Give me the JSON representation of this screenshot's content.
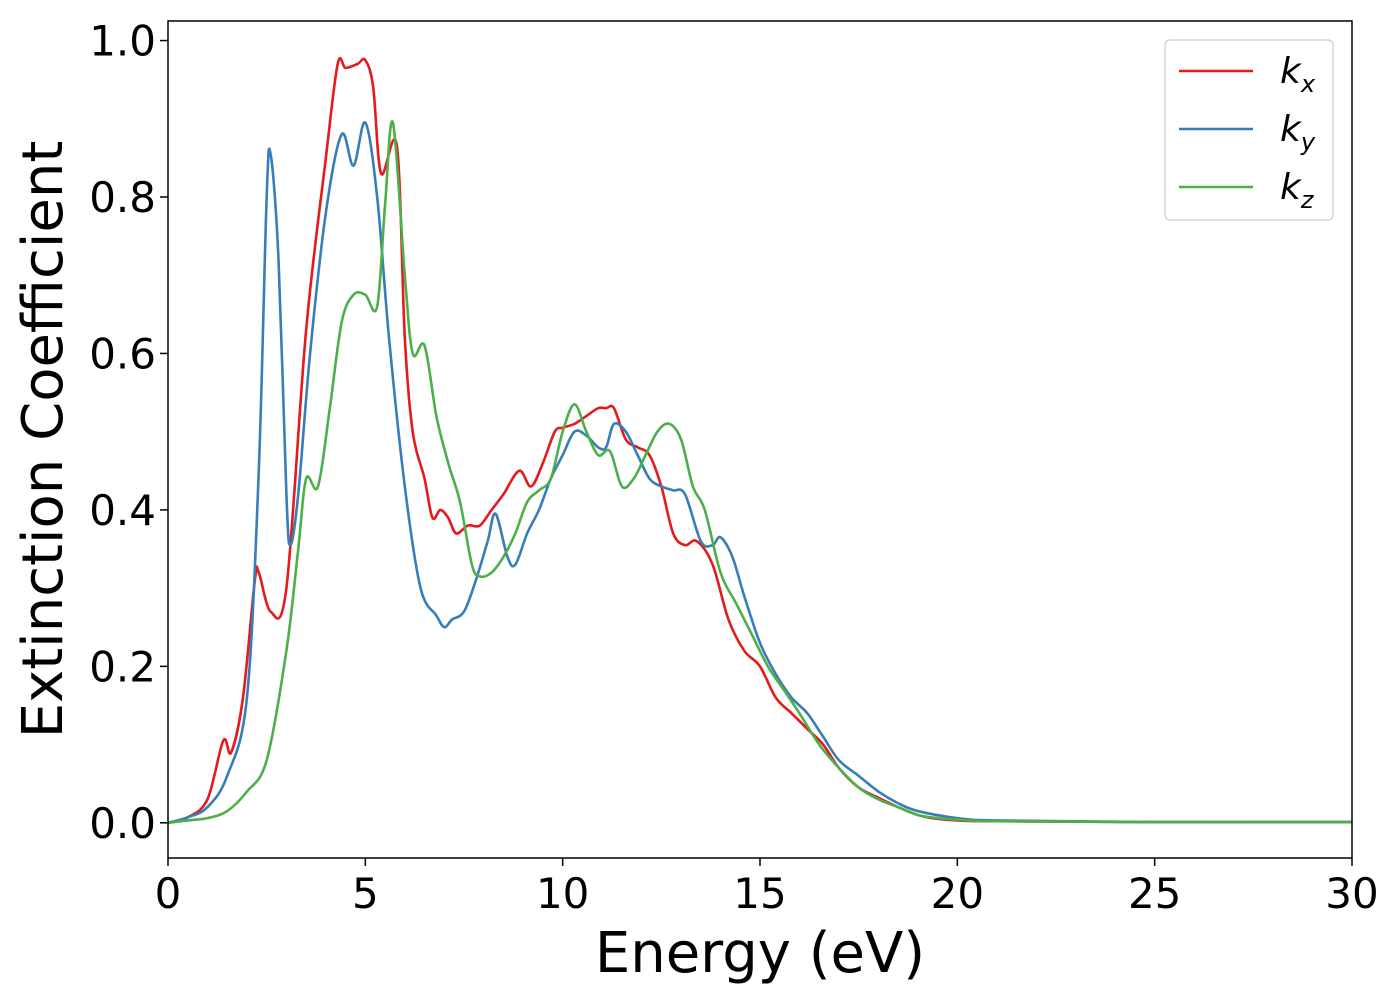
{
  "chart_data": {
    "type": "line",
    "title": "",
    "xlabel": "Energy (eV)",
    "ylabel": "Extinction Coefficient",
    "xlim": [
      0,
      30
    ],
    "ylim": [
      -0.045,
      1.025
    ],
    "xticks": [
      0,
      5,
      10,
      15,
      20,
      25,
      30
    ],
    "xtick_labels": [
      "0",
      "5",
      "10",
      "15",
      "20",
      "25",
      "30"
    ],
    "yticks": [
      0.0,
      0.2,
      0.4,
      0.6,
      0.8,
      1.0
    ],
    "ytick_labels": [
      "0.0",
      "0.2",
      "0.4",
      "0.6",
      "0.8",
      "1.0"
    ],
    "grid": false,
    "legend_position": "top-right",
    "series": [
      {
        "name": "k_x",
        "label_base": "k",
        "label_sub": "x",
        "color": "#e41a1c",
        "x": [
          0,
          0.5,
          1.0,
          1.4,
          1.6,
          1.9,
          2.2,
          2.3,
          2.6,
          3.0,
          3.5,
          4.0,
          4.3,
          4.5,
          4.8,
          5.0,
          5.2,
          5.4,
          5.8,
          6.0,
          6.2,
          6.5,
          6.7,
          6.9,
          7.1,
          7.3,
          7.6,
          7.9,
          8.2,
          8.5,
          8.9,
          9.2,
          9.5,
          9.8,
          10.0,
          10.3,
          10.6,
          10.9,
          11.1,
          11.3,
          11.6,
          11.9,
          12.2,
          12.5,
          12.8,
          13.1,
          13.4,
          13.8,
          14.2,
          14.6,
          15.0,
          15.4,
          15.8,
          16.2,
          16.6,
          17.0,
          17.5,
          18.0,
          18.5,
          19.0,
          19.5,
          20.0,
          21.0,
          25.0,
          30.0
        ],
        "y": [
          0.0,
          0.007,
          0.03,
          0.105,
          0.09,
          0.16,
          0.31,
          0.32,
          0.27,
          0.3,
          0.63,
          0.85,
          0.97,
          0.965,
          0.97,
          0.975,
          0.94,
          0.83,
          0.865,
          0.62,
          0.5,
          0.44,
          0.39,
          0.4,
          0.39,
          0.37,
          0.38,
          0.38,
          0.4,
          0.42,
          0.45,
          0.43,
          0.46,
          0.5,
          0.505,
          0.51,
          0.52,
          0.53,
          0.53,
          0.53,
          0.49,
          0.48,
          0.47,
          0.43,
          0.37,
          0.355,
          0.36,
          0.33,
          0.26,
          0.22,
          0.2,
          0.16,
          0.14,
          0.12,
          0.1,
          0.07,
          0.045,
          0.032,
          0.02,
          0.01,
          0.005,
          0.003,
          0.002,
          0.001,
          0.001
        ]
      },
      {
        "name": "k_y",
        "label_base": "k",
        "label_sub": "y",
        "color": "#377eb8",
        "x": [
          0,
          0.5,
          1.0,
          1.5,
          2.0,
          2.3,
          2.5,
          2.6,
          2.8,
          3.0,
          3.1,
          3.3,
          3.6,
          4.0,
          4.4,
          4.7,
          5.0,
          5.3,
          5.6,
          6.0,
          6.4,
          6.8,
          7.0,
          7.2,
          7.5,
          7.8,
          8.1,
          8.3,
          8.6,
          8.8,
          9.1,
          9.4,
          9.7,
          10.0,
          10.3,
          10.6,
          10.9,
          11.1,
          11.3,
          11.6,
          11.9,
          12.2,
          12.5,
          12.8,
          13.1,
          13.5,
          13.8,
          14.0,
          14.3,
          14.6,
          15.0,
          15.4,
          15.8,
          16.2,
          16.6,
          17.0,
          17.5,
          18.0,
          18.5,
          19.0,
          20.0,
          21.0,
          25.0,
          30.0
        ],
        "y": [
          0.0,
          0.007,
          0.02,
          0.06,
          0.16,
          0.45,
          0.8,
          0.855,
          0.72,
          0.42,
          0.355,
          0.42,
          0.6,
          0.78,
          0.88,
          0.84,
          0.895,
          0.8,
          0.62,
          0.43,
          0.3,
          0.265,
          0.25,
          0.26,
          0.27,
          0.31,
          0.36,
          0.395,
          0.34,
          0.33,
          0.37,
          0.4,
          0.44,
          0.47,
          0.5,
          0.495,
          0.48,
          0.48,
          0.51,
          0.5,
          0.47,
          0.44,
          0.43,
          0.425,
          0.42,
          0.36,
          0.355,
          0.365,
          0.34,
          0.29,
          0.23,
          0.19,
          0.16,
          0.14,
          0.11,
          0.08,
          0.06,
          0.04,
          0.025,
          0.015,
          0.006,
          0.003,
          0.001,
          0.001
        ]
      },
      {
        "name": "k_z",
        "label_base": "k",
        "label_sub": "z",
        "color": "#4daf4a",
        "x": [
          0,
          0.5,
          1.0,
          1.5,
          2.0,
          2.5,
          3.0,
          3.3,
          3.5,
          3.8,
          4.1,
          4.4,
          4.7,
          5.0,
          5.3,
          5.5,
          5.7,
          6.0,
          6.2,
          6.5,
          6.8,
          7.1,
          7.4,
          7.7,
          7.9,
          8.2,
          8.5,
          8.8,
          9.1,
          9.4,
          9.7,
          10.0,
          10.3,
          10.6,
          10.9,
          11.2,
          11.5,
          11.8,
          12.1,
          12.4,
          12.7,
          13.0,
          13.3,
          13.6,
          14.0,
          14.4,
          14.8,
          15.2,
          15.6,
          16.0,
          16.5,
          17.0,
          17.5,
          18.0,
          18.5,
          19.0,
          19.5,
          20.0,
          21.0,
          25.0,
          30.0
        ],
        "y": [
          0.0,
          0.003,
          0.006,
          0.015,
          0.04,
          0.08,
          0.22,
          0.35,
          0.44,
          0.43,
          0.53,
          0.64,
          0.675,
          0.675,
          0.66,
          0.79,
          0.895,
          0.7,
          0.6,
          0.61,
          0.52,
          0.46,
          0.41,
          0.33,
          0.315,
          0.32,
          0.34,
          0.37,
          0.41,
          0.425,
          0.44,
          0.5,
          0.535,
          0.5,
          0.47,
          0.475,
          0.43,
          0.44,
          0.47,
          0.5,
          0.51,
          0.49,
          0.43,
          0.4,
          0.32,
          0.28,
          0.24,
          0.2,
          0.17,
          0.14,
          0.1,
          0.07,
          0.045,
          0.03,
          0.02,
          0.01,
          0.006,
          0.004,
          0.002,
          0.001,
          0.001
        ]
      }
    ]
  }
}
